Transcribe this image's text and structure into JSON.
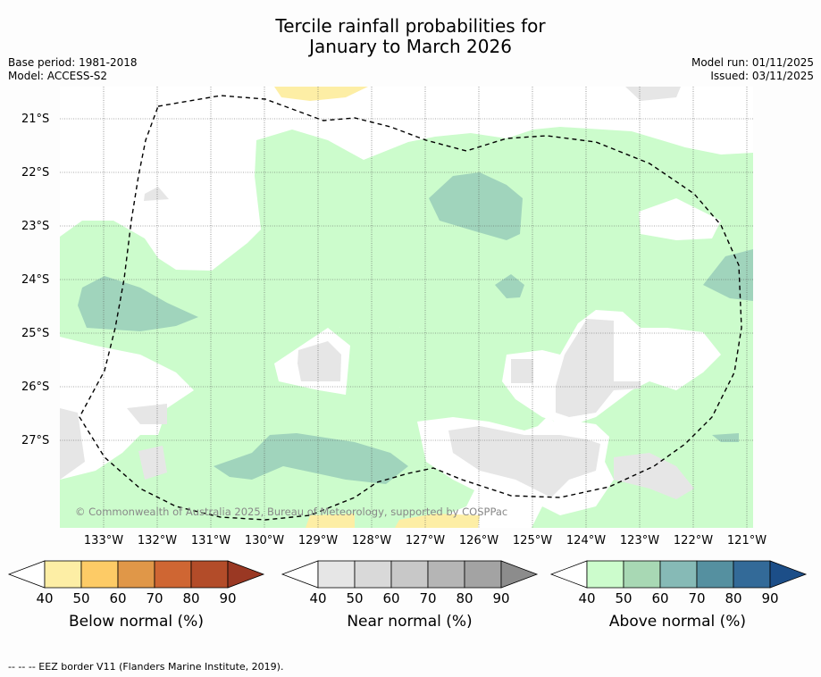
{
  "title_line1": "Tercile rainfall probabilities for",
  "title_line2": "January to March 2026",
  "base_period": "Base period: 1981-2018",
  "model": "Model: ACCESS-S2",
  "model_run": "Model run: 01/11/2025",
  "issued": "Issued: 03/11/2025",
  "lat_labels": [
    "21°S",
    "22°S",
    "23°S",
    "24°S",
    "25°S",
    "26°S",
    "27°S"
  ],
  "lon_labels": [
    "133°W",
    "132°W",
    "131°W",
    "130°W",
    "129°W",
    "128°W",
    "127°W",
    "126°W",
    "125°W",
    "124°W",
    "123°W",
    "122°W",
    "121°W"
  ],
  "copyright": "© Commonwealth of Australia 2025, Bureau of Meteorology, supported by COSPPac",
  "legends": [
    {
      "label": "Below normal (%)",
      "ticks": [
        "40",
        "50",
        "60",
        "70",
        "80",
        "90"
      ],
      "colors": [
        "#fdeea5",
        "#fdcb66",
        "#e09748",
        "#cf6633",
        "#b34c29",
        "#9a3823"
      ]
    },
    {
      "label": "Near normal (%)",
      "ticks": [
        "40",
        "50",
        "60",
        "70",
        "80",
        "90"
      ],
      "colors": [
        "#e6e6e6",
        "#d9d9d9",
        "#c8c8c8",
        "#b5b5b5",
        "#a3a3a3",
        "#8c8c8c"
      ]
    },
    {
      "label": "Above normal (%)",
      "ticks": [
        "40",
        "50",
        "60",
        "70",
        "80",
        "90"
      ],
      "colors": [
        "#ccfccc",
        "#a8d8b4",
        "#86bab6",
        "#5590a0",
        "#336a98",
        "#1c4e88"
      ]
    }
  ],
  "footer": "--  --  -- EEZ border V11 (Flanders Marine Institute, 2019)."
}
